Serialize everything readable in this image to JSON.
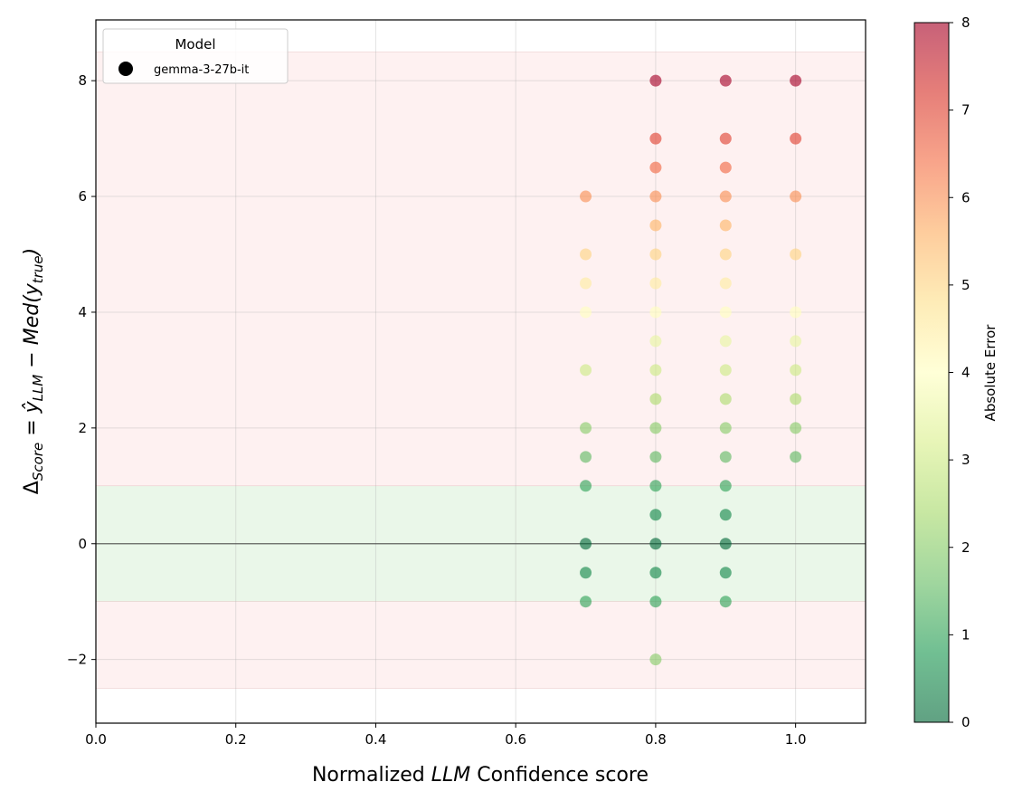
{
  "chart_data": {
    "type": "scatter",
    "xlabel_prefix": "Normalized ",
    "xlabel_italic": "LLM",
    "xlabel_suffix": " Confidence score",
    "ylabel_parts": {
      "delta": "Δ",
      "score_sub": "Score",
      "eq": " = ",
      "yhat": "ŷ",
      "llm_sub": "LLM",
      "minus": " − ",
      "med": "Med(y",
      "true_sub": "true",
      "close": ")"
    },
    "xlim": [
      0.0,
      1.1
    ],
    "ylim": [
      -3.1,
      9.05
    ],
    "xticks": [
      0.0,
      0.2,
      0.4,
      0.6,
      0.8,
      1.0
    ],
    "xtick_labels": [
      "0.0",
      "0.2",
      "0.4",
      "0.6",
      "0.8",
      "1.0"
    ],
    "yticks": [
      -2,
      0,
      2,
      4,
      6,
      8
    ],
    "ytick_labels": [
      "−2",
      "0",
      "2",
      "4",
      "6",
      "8"
    ],
    "grid": true,
    "bands": [
      {
        "ymin": 1.0,
        "ymax": 8.5,
        "color": "#fdecec"
      },
      {
        "ymin": -1.0,
        "ymax": 1.0,
        "color": "#e3f4e1"
      },
      {
        "ymin": -2.5,
        "ymax": -1.0,
        "color": "#fdecec"
      }
    ],
    "zero_line": 0,
    "legend": {
      "title": "Model",
      "position": "top-left",
      "entries": [
        {
          "label": "gemma-3-27b-it",
          "color": "#000000"
        }
      ]
    },
    "colorbar": {
      "label": "Absolute Error",
      "vmin": 0,
      "vmax": 8,
      "ticks": [
        0,
        1,
        2,
        3,
        4,
        5,
        6,
        7,
        8
      ],
      "tick_labels": [
        "0",
        "1",
        "2",
        "3",
        "4",
        "5",
        "6",
        "7",
        "8"
      ],
      "colormap": "RdYlGn_r"
    },
    "series": [
      {
        "name": "gemma-3-27b-it",
        "points": [
          {
            "x": 0.7,
            "y": 6
          },
          {
            "x": 0.7,
            "y": 5
          },
          {
            "x": 0.7,
            "y": 4.5
          },
          {
            "x": 0.7,
            "y": 4
          },
          {
            "x": 0.7,
            "y": 3
          },
          {
            "x": 0.7,
            "y": 2
          },
          {
            "x": 0.7,
            "y": 1.5
          },
          {
            "x": 0.7,
            "y": 1
          },
          {
            "x": 0.7,
            "y": 0
          },
          {
            "x": 0.7,
            "y": -0.5
          },
          {
            "x": 0.7,
            "y": -1
          },
          {
            "x": 0.8,
            "y": 8
          },
          {
            "x": 0.8,
            "y": 7
          },
          {
            "x": 0.8,
            "y": 6.5
          },
          {
            "x": 0.8,
            "y": 6
          },
          {
            "x": 0.8,
            "y": 5.5
          },
          {
            "x": 0.8,
            "y": 5
          },
          {
            "x": 0.8,
            "y": 4.5
          },
          {
            "x": 0.8,
            "y": 4
          },
          {
            "x": 0.8,
            "y": 3.5
          },
          {
            "x": 0.8,
            "y": 3
          },
          {
            "x": 0.8,
            "y": 2.5
          },
          {
            "x": 0.8,
            "y": 2
          },
          {
            "x": 0.8,
            "y": 1.5
          },
          {
            "x": 0.8,
            "y": 1
          },
          {
            "x": 0.8,
            "y": 0.5
          },
          {
            "x": 0.8,
            "y": 0
          },
          {
            "x": 0.8,
            "y": -0.5
          },
          {
            "x": 0.8,
            "y": -1
          },
          {
            "x": 0.8,
            "y": -2
          },
          {
            "x": 0.9,
            "y": 8
          },
          {
            "x": 0.9,
            "y": 7
          },
          {
            "x": 0.9,
            "y": 6.5
          },
          {
            "x": 0.9,
            "y": 6
          },
          {
            "x": 0.9,
            "y": 5.5
          },
          {
            "x": 0.9,
            "y": 5
          },
          {
            "x": 0.9,
            "y": 4.5
          },
          {
            "x": 0.9,
            "y": 4
          },
          {
            "x": 0.9,
            "y": 3.5
          },
          {
            "x": 0.9,
            "y": 3
          },
          {
            "x": 0.9,
            "y": 2.5
          },
          {
            "x": 0.9,
            "y": 2
          },
          {
            "x": 0.9,
            "y": 1.5
          },
          {
            "x": 0.9,
            "y": 1
          },
          {
            "x": 0.9,
            "y": 0.5
          },
          {
            "x": 0.9,
            "y": 0
          },
          {
            "x": 0.9,
            "y": -0.5
          },
          {
            "x": 0.9,
            "y": -1
          },
          {
            "x": 1.0,
            "y": 8
          },
          {
            "x": 1.0,
            "y": 7
          },
          {
            "x": 1.0,
            "y": 6
          },
          {
            "x": 1.0,
            "y": 5
          },
          {
            "x": 1.0,
            "y": 4
          },
          {
            "x": 1.0,
            "y": 3.5
          },
          {
            "x": 1.0,
            "y": 3
          },
          {
            "x": 1.0,
            "y": 2.5
          },
          {
            "x": 1.0,
            "y": 2
          },
          {
            "x": 1.0,
            "y": 1.5
          }
        ]
      }
    ]
  }
}
